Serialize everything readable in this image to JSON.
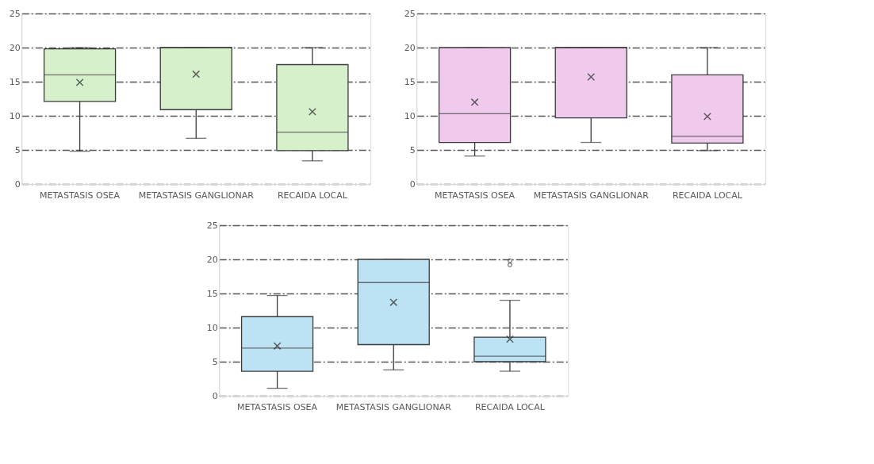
{
  "chart_data": [
    {
      "type": "box",
      "categories": [
        "METASTASIS OSEA",
        "METASTASIS GANGLIONAR",
        "RECAIDA LOCAL"
      ],
      "ylim": [
        0,
        25
      ],
      "yticks": [
        0,
        5,
        10,
        15,
        20,
        25
      ],
      "grid": "y",
      "series": [
        {
          "color": "#d6f0cc",
          "boxes": [
            {
              "low": 4.8,
              "q1": 12.1,
              "median": 16,
              "q3": 19.8,
              "high": 20,
              "mean": 14.9
            },
            {
              "low": 6.7,
              "q1": 10.9,
              "median": 20,
              "q3": 20,
              "high": 20,
              "mean": 16.1
            },
            {
              "low": 3.4,
              "q1": 4.9,
              "median": 7.6,
              "q3": 17.5,
              "high": 20,
              "mean": 10.6
            }
          ]
        }
      ]
    },
    {
      "type": "box",
      "categories": [
        "METASTASIS OSEA",
        "METASTASIS GANGLIONAR",
        "RECAIDA LOCAL"
      ],
      "ylim": [
        0,
        25
      ],
      "yticks": [
        0,
        5,
        10,
        15,
        20,
        25
      ],
      "grid": "y",
      "series": [
        {
          "color": "#f0caec",
          "boxes": [
            {
              "low": 4.1,
              "q1": 6.1,
              "median": 10.3,
              "q3": 20,
              "high": 20,
              "mean": 12
            },
            {
              "low": 6.1,
              "q1": 9.7,
              "median": 20,
              "q3": 20,
              "high": 20,
              "mean": 15.7
            },
            {
              "low": 4.9,
              "q1": 6,
              "median": 7,
              "q3": 16,
              "high": 20,
              "mean": 9.9
            }
          ]
        }
      ]
    },
    {
      "type": "box",
      "categories": [
        "METASTASIS OSEA",
        "METASTASIS GANGLIONAR",
        "RECAIDA LOCAL"
      ],
      "ylim": [
        0,
        25
      ],
      "yticks": [
        0,
        5,
        10,
        15,
        20,
        25
      ],
      "grid": "y",
      "series": [
        {
          "color": "#bde2f4",
          "boxes": [
            {
              "low": 1.1,
              "q1": 3.6,
              "median": 7,
              "q3": 11.6,
              "high": 14.7,
              "mean": 7.3
            },
            {
              "low": 3.8,
              "q1": 7.5,
              "median": 16.6,
              "q3": 20,
              "high": 20,
              "mean": 13.7
            },
            {
              "low": 3.6,
              "q1": 5,
              "median": 5.8,
              "q3": 8.6,
              "high": 14,
              "mean": 8.3,
              "outliers": [
                19.2,
                19.8
              ]
            }
          ]
        }
      ]
    }
  ]
}
